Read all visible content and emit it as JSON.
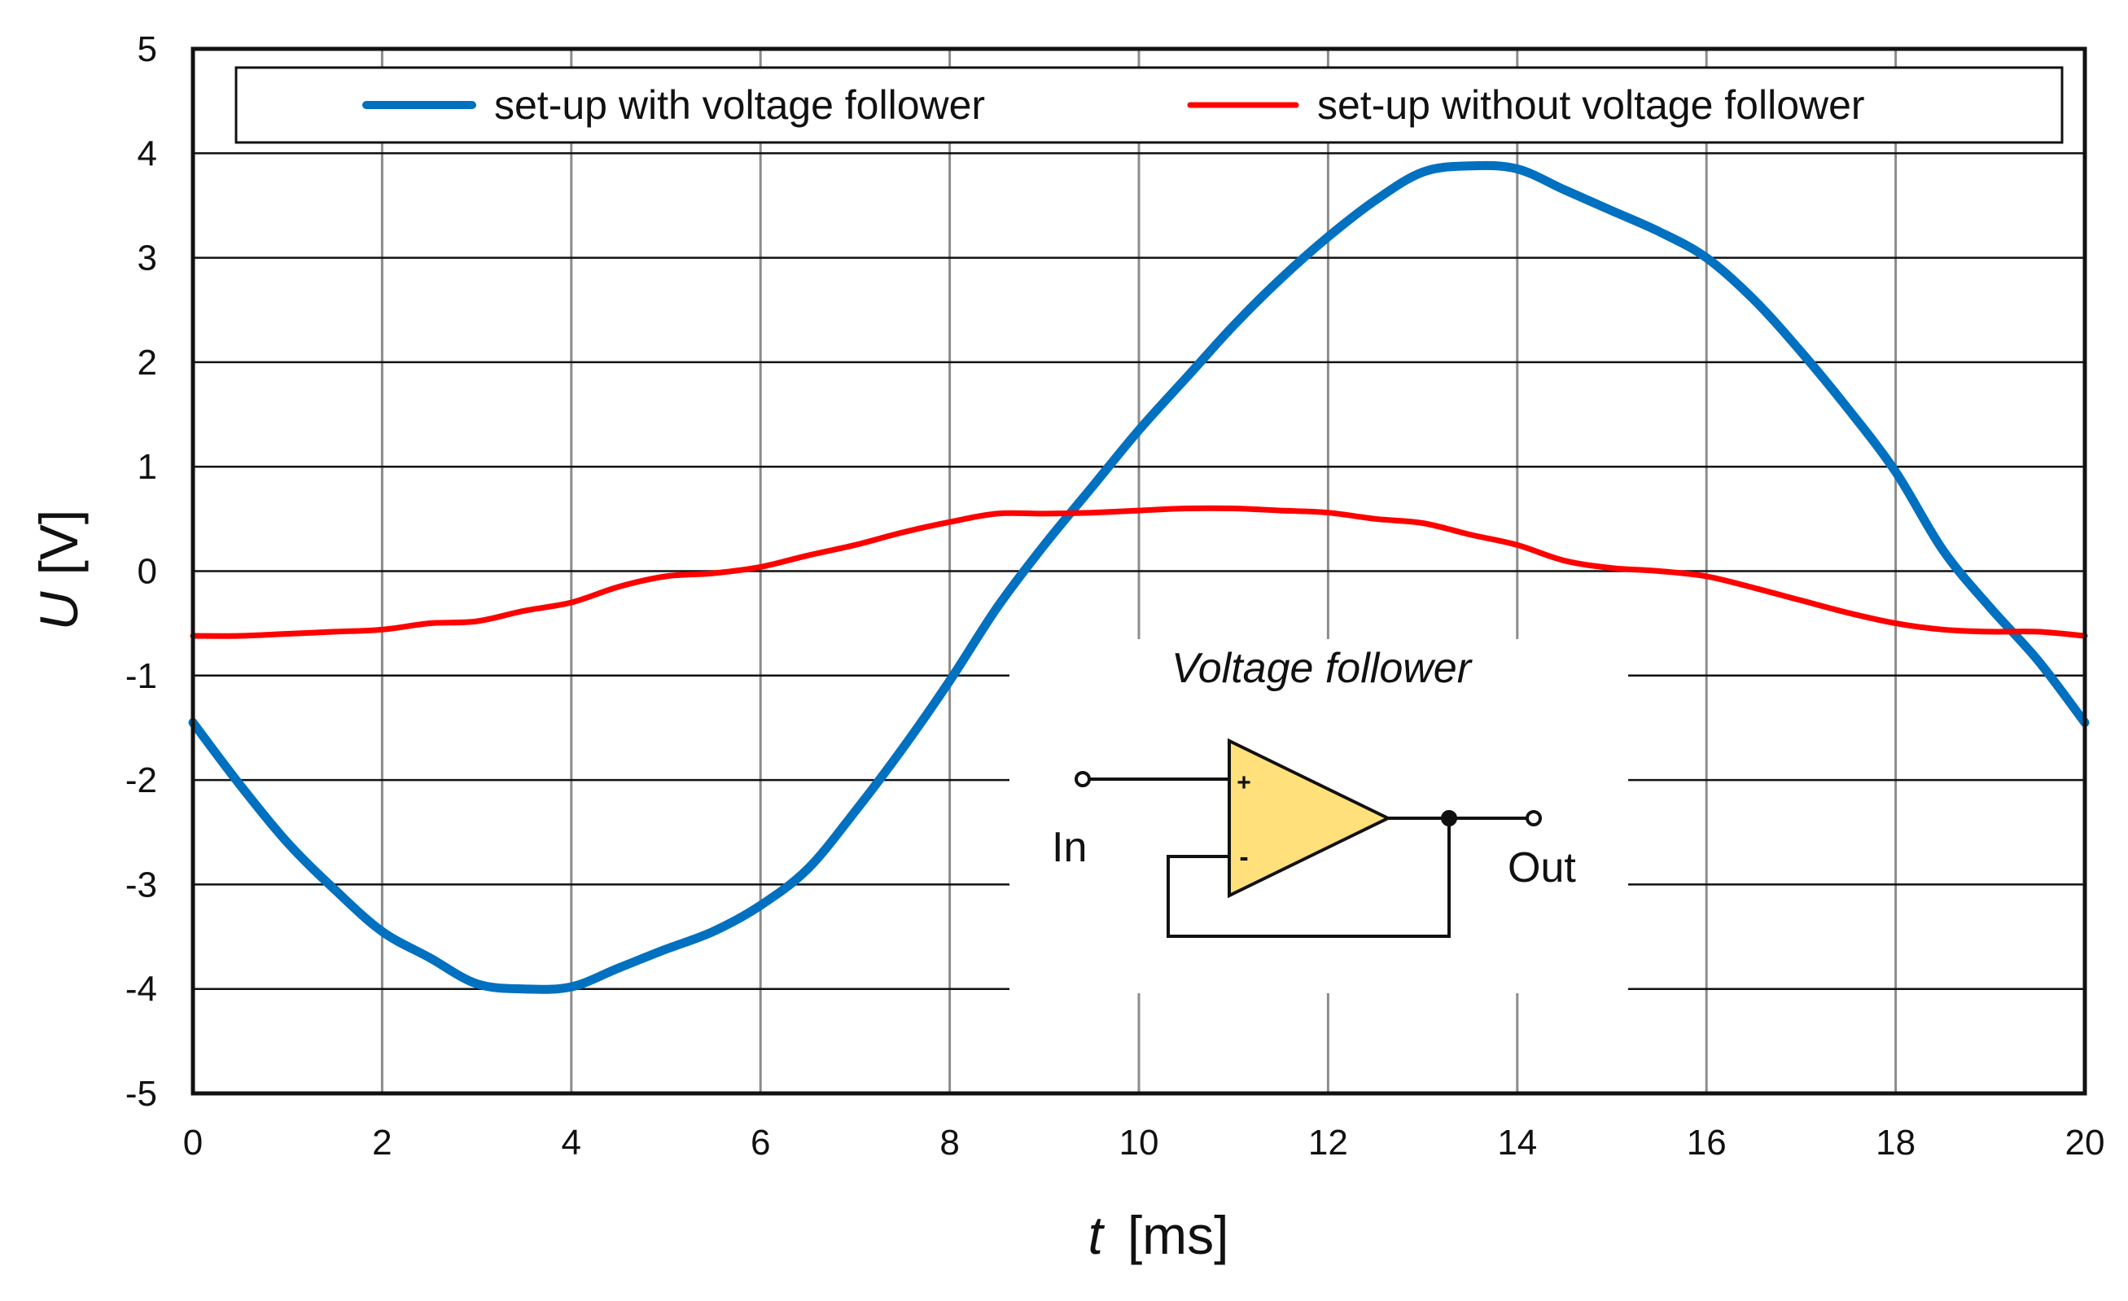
{
  "chart_data": {
    "type": "line",
    "xlabel": {
      "symbol": "t",
      "unit": "[ms]"
    },
    "ylabel": {
      "symbol": "U",
      "unit": "[V]"
    },
    "xlim": [
      0,
      20
    ],
    "ylim": [
      -5,
      5
    ],
    "x_ticks": [
      0,
      2,
      4,
      6,
      8,
      10,
      12,
      14,
      16,
      18,
      20
    ],
    "y_ticks": [
      5,
      4,
      3,
      2,
      1,
      0,
      -1,
      -2,
      -3,
      -4,
      -5
    ],
    "grid": true,
    "legend_position": "top, inside plot area",
    "series": [
      {
        "name": "set-up with voltage follower",
        "color": "#0070C0",
        "x": [
          0,
          0.5,
          1,
          1.5,
          2,
          2.5,
          3,
          3.5,
          4,
          4.5,
          5,
          5.5,
          6,
          6.5,
          7,
          7.5,
          8,
          8.5,
          9,
          9.5,
          10,
          10.5,
          11,
          11.5,
          12,
          12.5,
          13,
          13.5,
          14,
          14.5,
          15,
          15.5,
          16,
          16.5,
          17,
          17.5,
          18,
          18.5,
          19,
          19.5,
          20
        ],
        "y": [
          -1.45,
          -2.05,
          -2.6,
          -3.05,
          -3.45,
          -3.7,
          -3.95,
          -4.0,
          -3.98,
          -3.8,
          -3.62,
          -3.45,
          -3.2,
          -2.85,
          -2.3,
          -1.7,
          -1.05,
          -0.35,
          0.25,
          0.8,
          1.35,
          1.85,
          2.35,
          2.8,
          3.2,
          3.55,
          3.82,
          3.88,
          3.85,
          3.65,
          3.45,
          3.25,
          3.0,
          2.6,
          2.1,
          1.55,
          0.95,
          0.2,
          -0.35,
          -0.85,
          -1.45
        ]
      },
      {
        "name": "set-up without voltage follower",
        "color": "#FF0000",
        "x": [
          0,
          0.5,
          1,
          1.5,
          2,
          2.5,
          3,
          3.5,
          4,
          4.5,
          5,
          5.5,
          6,
          6.5,
          7,
          7.5,
          8,
          8.5,
          9,
          9.5,
          10,
          10.5,
          11,
          11.5,
          12,
          12.5,
          13,
          13.5,
          14,
          14.5,
          15,
          15.5,
          16,
          16.5,
          17,
          17.5,
          18,
          18.5,
          19,
          19.5,
          20
        ],
        "y": [
          -0.62,
          -0.62,
          -0.6,
          -0.58,
          -0.56,
          -0.5,
          -0.48,
          -0.38,
          -0.3,
          -0.15,
          -0.05,
          -0.02,
          0.04,
          0.15,
          0.25,
          0.37,
          0.47,
          0.55,
          0.55,
          0.56,
          0.58,
          0.6,
          0.6,
          0.58,
          0.56,
          0.5,
          0.46,
          0.35,
          0.25,
          0.1,
          0.03,
          0.0,
          -0.05,
          -0.16,
          -0.28,
          -0.4,
          -0.5,
          -0.56,
          -0.58,
          -0.58,
          -0.62
        ]
      }
    ],
    "inset": {
      "title": "Voltage follower",
      "input_label": "In",
      "output_label": "Out",
      "plus_sign": "+",
      "minus_sign": "-",
      "amplifier_fill": "#FFE07A"
    }
  }
}
